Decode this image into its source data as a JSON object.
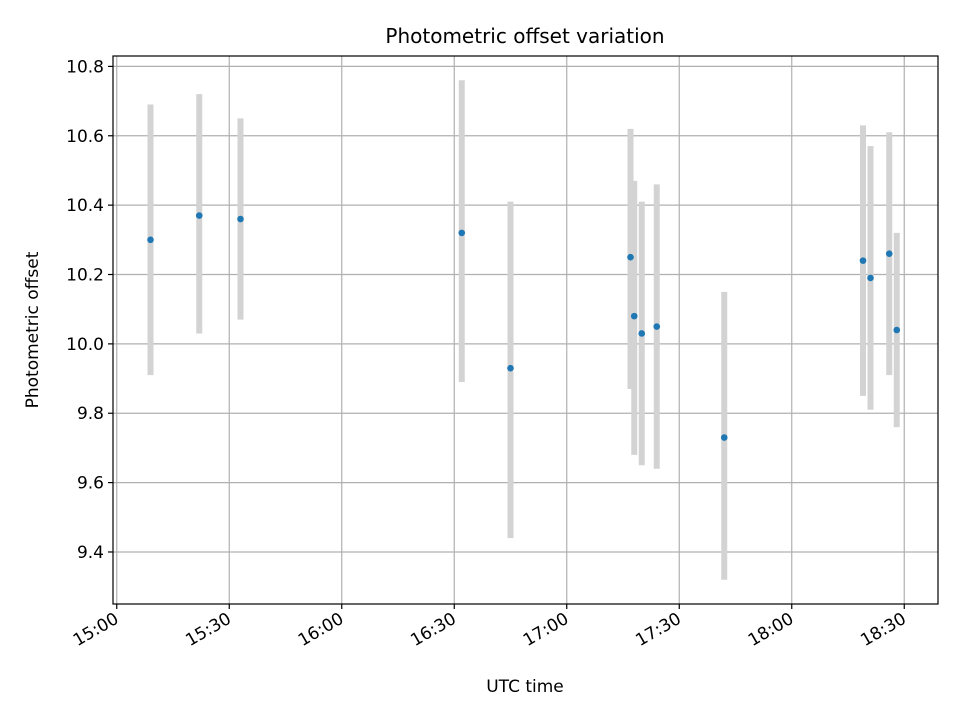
{
  "chart_data": {
    "type": "scatter",
    "title": "Photometric offset variation",
    "xlabel": "UTC time",
    "ylabel": "Photometric offset",
    "x_ticks": [
      "15:00",
      "15:30",
      "16:00",
      "16:30",
      "17:00",
      "17:30",
      "18:00",
      "18:30"
    ],
    "y_ticks": [
      "9.4",
      "9.6",
      "9.8",
      "10.0",
      "10.2",
      "10.4",
      "10.6",
      "10.8"
    ],
    "xlim": [
      "14:59",
      "18:39"
    ],
    "ylim": [
      9.25,
      10.83
    ],
    "grid": true,
    "series": [
      {
        "points": [
          {
            "x": "15:09",
            "y": 10.3,
            "ylow": 9.91,
            "yhigh": 10.69
          },
          {
            "x": "15:22",
            "y": 10.37,
            "ylow": 10.03,
            "yhigh": 10.72
          },
          {
            "x": "15:33",
            "y": 10.36,
            "ylow": 10.07,
            "yhigh": 10.65
          },
          {
            "x": "16:32",
            "y": 10.32,
            "ylow": 9.89,
            "yhigh": 10.76
          },
          {
            "x": "16:45",
            "y": 9.93,
            "ylow": 9.44,
            "yhigh": 10.41
          },
          {
            "x": "17:17",
            "y": 10.25,
            "ylow": 9.87,
            "yhigh": 10.62
          },
          {
            "x": "17:18",
            "y": 10.08,
            "ylow": 9.68,
            "yhigh": 10.47
          },
          {
            "x": "17:20",
            "y": 10.03,
            "ylow": 9.65,
            "yhigh": 10.41
          },
          {
            "x": "17:24",
            "y": 10.05,
            "ylow": 9.64,
            "yhigh": 10.46
          },
          {
            "x": "17:42",
            "y": 9.73,
            "ylow": 9.32,
            "yhigh": 10.15
          },
          {
            "x": "18:19",
            "y": 10.24,
            "ylow": 9.85,
            "yhigh": 10.63
          },
          {
            "x": "18:21",
            "y": 10.19,
            "ylow": 9.81,
            "yhigh": 10.57
          },
          {
            "x": "18:26",
            "y": 10.26,
            "ylow": 9.91,
            "yhigh": 10.61
          },
          {
            "x": "18:28",
            "y": 10.04,
            "ylow": 9.76,
            "yhigh": 10.32
          }
        ]
      }
    ],
    "colors": {
      "point": "#1f77b4",
      "errorbar": "#d3d3d3",
      "grid": "#b0b0b0",
      "axes": "#000000"
    }
  }
}
